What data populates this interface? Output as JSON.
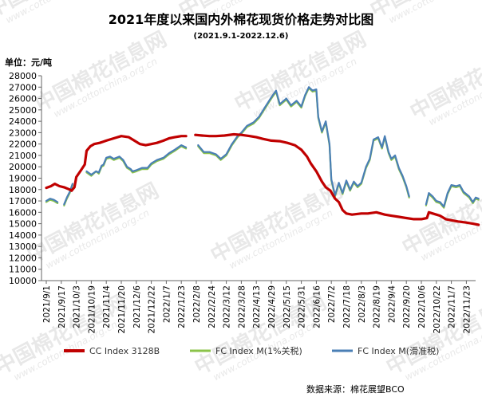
{
  "chart_data": {
    "type": "line",
    "title": "2021年度以来国内外棉花现货价格走势对比图",
    "subtitle": "(2021.9.1-2022.12.6)",
    "ylabel": "单位：元/吨",
    "ylim": [
      10000,
      28000
    ],
    "ytick_step": 1000,
    "grid": false,
    "legend_position": "bottom",
    "source": "数据来源：棉花展望BCO",
    "watermark": {
      "cn": "中国棉花信息网",
      "url": "www.cottonchina.org.cn"
    },
    "x_dates": [
      "2021/9/1",
      "2021/9/17",
      "2021/10/3",
      "2021/10/19",
      "2021/11/4",
      "2021/11/20",
      "2021/12/6",
      "2021/12/22",
      "2022/1/7",
      "2022/1/23",
      "2022/2/8",
      "2022/2/24",
      "2022/3/12",
      "2022/3/28",
      "2022/4/13",
      "2022/4/29",
      "2022/5/15",
      "2022/5/31",
      "2022/6/16",
      "2022/7/2",
      "2022/7/18",
      "2022/8/3",
      "2022/8/19",
      "2022/9/4",
      "2022/9/20",
      "2022/10/6",
      "2022/10/22",
      "2022/11/7",
      "2022/11/23"
    ],
    "x_range": [
      "2021/9/1",
      "2022/12/6"
    ],
    "series": [
      {
        "name": "CC Index 3128B",
        "color": "#c00000",
        "points": [
          [
            "2021/9/1",
            18150
          ],
          [
            "2021/9/6",
            18300
          ],
          [
            "2021/9/10",
            18500
          ],
          [
            "2021/9/15",
            18300
          ],
          [
            "2021/9/20",
            18200
          ],
          [
            "2021/9/26",
            18000
          ],
          [
            "2021/9/28",
            17900
          ],
          [
            "2021/10/1",
            18200
          ],
          [
            "2021/10/3",
            19100
          ],
          [
            "2021/10/8",
            19700
          ],
          [
            "2021/10/12",
            20200
          ],
          [
            "2021/10/14",
            21400
          ],
          [
            "2021/10/18",
            21800
          ],
          [
            "2021/10/22",
            22000
          ],
          [
            "2021/10/28",
            22100
          ],
          [
            "2021/11/4",
            22300
          ],
          [
            "2021/11/12",
            22500
          ],
          [
            "2021/11/20",
            22700
          ],
          [
            "2021/11/28",
            22600
          ],
          [
            "2021/12/4",
            22300
          ],
          [
            "2021/12/10",
            22000
          ],
          [
            "2021/12/16",
            21900
          ],
          [
            "2021/12/22",
            22000
          ],
          [
            "2021/12/28",
            22100
          ],
          [
            "2022/1/4",
            22300
          ],
          [
            "2022/1/10",
            22500
          ],
          [
            "2022/1/16",
            22600
          ],
          [
            "2022/1/23",
            22700
          ],
          [
            "2022/1/28",
            22700
          ],
          null,
          [
            "2022/2/7",
            22800
          ],
          [
            "2022/2/14",
            22750
          ],
          [
            "2022/2/22",
            22700
          ],
          [
            "2022/3/1",
            22700
          ],
          [
            "2022/3/10",
            22750
          ],
          [
            "2022/3/20",
            22850
          ],
          [
            "2022/3/28",
            22800
          ],
          [
            "2022/4/6",
            22700
          ],
          [
            "2022/4/13",
            22600
          ],
          [
            "2022/4/20",
            22450
          ],
          [
            "2022/4/29",
            22300
          ],
          [
            "2022/5/8",
            22250
          ],
          [
            "2022/5/16",
            22100
          ],
          [
            "2022/5/24",
            21900
          ],
          [
            "2022/5/31",
            21500
          ],
          [
            "2022/6/6",
            20900
          ],
          [
            "2022/6/10",
            20300
          ],
          [
            "2022/6/16",
            19600
          ],
          [
            "2022/6/22",
            18700
          ],
          [
            "2022/6/26",
            18200
          ],
          [
            "2022/7/1",
            17900
          ],
          [
            "2022/7/6",
            17200
          ],
          [
            "2022/7/10",
            16900
          ],
          [
            "2022/7/14",
            16200
          ],
          [
            "2022/7/18",
            15900
          ],
          [
            "2022/7/24",
            15800
          ],
          [
            "2022/8/3",
            15900
          ],
          [
            "2022/8/10",
            15900
          ],
          [
            "2022/8/19",
            16000
          ],
          [
            "2022/8/28",
            15800
          ],
          [
            "2022/9/4",
            15700
          ],
          [
            "2022/9/12",
            15600
          ],
          [
            "2022/9/20",
            15500
          ],
          [
            "2022/9/28",
            15400
          ],
          [
            "2022/10/6",
            15400
          ],
          [
            "2022/10/12",
            15500
          ],
          [
            "2022/10/14",
            16000
          ],
          [
            "2022/10/22",
            15800
          ],
          [
            "2022/10/26",
            15700
          ],
          [
            "2022/11/1",
            15400
          ],
          [
            "2022/11/7",
            15300
          ],
          [
            "2022/11/14",
            15200
          ],
          [
            "2022/11/23",
            15100
          ],
          [
            "2022/11/30",
            15000
          ],
          [
            "2022/12/6",
            14900
          ]
        ]
      },
      {
        "name": "FC Index M(1%关税)",
        "color": "#8bc34a",
        "points": [
          [
            "2021/9/1",
            16900
          ],
          [
            "2021/9/5",
            17100
          ],
          [
            "2021/9/9",
            17000
          ],
          [
            "2021/9/13",
            16800
          ],
          null,
          [
            "2021/9/20",
            16600
          ],
          [
            "2021/9/23",
            17200
          ],
          [
            "2021/9/26",
            17700
          ],
          [
            "2021/9/29",
            18400
          ],
          null,
          [
            "2021/10/14",
            19500
          ],
          [
            "2021/10/19",
            19200
          ],
          [
            "2021/10/24",
            19600
          ],
          [
            "2021/10/27",
            19400
          ],
          [
            "2021/10/30",
            20000
          ],
          [
            "2021/11/1",
            20100
          ],
          [
            "2021/11/4",
            20700
          ],
          [
            "2021/11/8",
            20800
          ],
          [
            "2021/11/12",
            20600
          ],
          [
            "2021/11/18",
            20800
          ],
          [
            "2021/11/22",
            20500
          ],
          [
            "2021/11/26",
            19900
          ],
          [
            "2021/11/30",
            19700
          ],
          [
            "2021/12/2",
            19500
          ],
          [
            "2021/12/6",
            19600
          ],
          [
            "2021/12/12",
            19800
          ],
          [
            "2021/12/18",
            19800
          ],
          [
            "2021/12/22",
            20200
          ],
          [
            "2021/12/28",
            20500
          ],
          [
            "2022/1/4",
            20700
          ],
          [
            "2022/1/10",
            21100
          ],
          [
            "2022/1/16",
            21400
          ],
          [
            "2022/1/23",
            21800
          ],
          [
            "2022/1/28",
            21600
          ],
          null,
          [
            "2022/2/10",
            21800
          ],
          [
            "2022/2/16",
            21200
          ],
          [
            "2022/2/22",
            21200
          ],
          [
            "2022/3/1",
            21000
          ],
          [
            "2022/3/6",
            20600
          ],
          [
            "2022/3/12",
            21000
          ],
          [
            "2022/3/18",
            21900
          ],
          [
            "2022/3/24",
            22600
          ],
          [
            "2022/3/28",
            22900
          ],
          [
            "2022/4/3",
            23500
          ],
          [
            "2022/4/10",
            23800
          ],
          [
            "2022/4/16",
            24300
          ],
          [
            "2022/4/22",
            25100
          ],
          [
            "2022/4/29",
            26000
          ],
          [
            "2022/5/4",
            26600
          ],
          [
            "2022/5/8",
            25400
          ],
          [
            "2022/5/15",
            25900
          ],
          [
            "2022/5/20",
            25300
          ],
          [
            "2022/5/26",
            25700
          ],
          [
            "2022/5/31",
            25200
          ],
          [
            "2022/6/4",
            26200
          ],
          [
            "2022/6/8",
            26900
          ],
          [
            "2022/6/12",
            26600
          ],
          [
            "2022/6/16",
            26700
          ],
          [
            "2022/6/18",
            24300
          ],
          [
            "2022/6/22",
            23000
          ],
          [
            "2022/6/26",
            23900
          ],
          [
            "2022/6/30",
            21900
          ],
          [
            "2022/7/2",
            18800
          ],
          [
            "2022/7/6",
            17400
          ],
          [
            "2022/7/10",
            18500
          ],
          [
            "2022/7/14",
            17600
          ],
          [
            "2022/7/18",
            18700
          ],
          [
            "2022/7/22",
            17900
          ],
          [
            "2022/7/26",
            18600
          ],
          [
            "2022/7/30",
            18200
          ],
          [
            "2022/8/3",
            18500
          ],
          [
            "2022/8/8",
            19900
          ],
          [
            "2022/8/12",
            20600
          ],
          [
            "2022/8/16",
            22300
          ],
          [
            "2022/8/21",
            22500
          ],
          [
            "2022/8/25",
            21600
          ],
          [
            "2022/8/28",
            22600
          ],
          [
            "2022/9/1",
            21200
          ],
          [
            "2022/9/4",
            20600
          ],
          [
            "2022/9/8",
            20900
          ],
          [
            "2022/9/12",
            19800
          ],
          [
            "2022/9/16",
            19100
          ],
          [
            "2022/9/20",
            18200
          ],
          [
            "2022/9/23",
            17300
          ],
          null,
          [
            "2022/10/11",
            16600
          ],
          [
            "2022/10/14",
            17600
          ],
          [
            "2022/10/18",
            17300
          ],
          [
            "2022/10/22",
            16900
          ],
          [
            "2022/10/26",
            16800
          ],
          [
            "2022/10/30",
            16400
          ],
          [
            "2022/11/3",
            17600
          ],
          [
            "2022/11/7",
            18300
          ],
          [
            "2022/11/12",
            18200
          ],
          [
            "2022/11/16",
            18300
          ],
          [
            "2022/11/20",
            17700
          ],
          [
            "2022/11/23",
            17500
          ],
          [
            "2022/11/26",
            17300
          ],
          [
            "2022/11/30",
            16800
          ],
          [
            "2022/12/3",
            17200
          ],
          [
            "2022/12/6",
            17100
          ]
        ]
      },
      {
        "name": "FC Index M(滑准税)",
        "color": "#4a7fb5",
        "points": [
          [
            "2021/9/1",
            17000
          ],
          [
            "2021/9/5",
            17200
          ],
          [
            "2021/9/9",
            17100
          ],
          [
            "2021/9/13",
            16900
          ],
          null,
          [
            "2021/9/20",
            16700
          ],
          [
            "2021/9/23",
            17300
          ],
          [
            "2021/9/26",
            17800
          ],
          [
            "2021/9/29",
            18500
          ],
          null,
          [
            "2021/10/14",
            19600
          ],
          [
            "2021/10/19",
            19300
          ],
          [
            "2021/10/24",
            19600
          ],
          [
            "2021/10/27",
            19500
          ],
          [
            "2021/10/30",
            20100
          ],
          [
            "2021/11/1",
            20200
          ],
          [
            "2021/11/4",
            20800
          ],
          [
            "2021/11/8",
            20900
          ],
          [
            "2021/11/12",
            20700
          ],
          [
            "2021/11/18",
            20900
          ],
          [
            "2021/11/22",
            20600
          ],
          [
            "2021/11/26",
            20000
          ],
          [
            "2021/11/30",
            19800
          ],
          [
            "2021/12/2",
            19600
          ],
          [
            "2021/12/6",
            19700
          ],
          [
            "2021/12/12",
            19900
          ],
          [
            "2021/12/18",
            19900
          ],
          [
            "2021/12/22",
            20300
          ],
          [
            "2021/12/28",
            20600
          ],
          [
            "2022/1/4",
            20800
          ],
          [
            "2022/1/10",
            21200
          ],
          [
            "2022/1/16",
            21500
          ],
          [
            "2022/1/23",
            21900
          ],
          [
            "2022/1/28",
            21700
          ],
          null,
          [
            "2022/2/10",
            21900
          ],
          [
            "2022/2/16",
            21300
          ],
          [
            "2022/2/22",
            21300
          ],
          [
            "2022/3/1",
            21100
          ],
          [
            "2022/3/6",
            20700
          ],
          [
            "2022/3/12",
            21100
          ],
          [
            "2022/3/18",
            22000
          ],
          [
            "2022/3/24",
            22700
          ],
          [
            "2022/3/28",
            23000
          ],
          [
            "2022/4/3",
            23600
          ],
          [
            "2022/4/10",
            23900
          ],
          [
            "2022/4/16",
            24400
          ],
          [
            "2022/4/22",
            25200
          ],
          [
            "2022/4/29",
            26100
          ],
          [
            "2022/5/4",
            26700
          ],
          [
            "2022/5/8",
            25500
          ],
          [
            "2022/5/15",
            26000
          ],
          [
            "2022/5/20",
            25400
          ],
          [
            "2022/5/26",
            25800
          ],
          [
            "2022/5/31",
            25300
          ],
          [
            "2022/6/4",
            26300
          ],
          [
            "2022/6/8",
            27000
          ],
          [
            "2022/6/12",
            26700
          ],
          [
            "2022/6/16",
            26800
          ],
          [
            "2022/6/18",
            24400
          ],
          [
            "2022/6/22",
            23100
          ],
          [
            "2022/6/26",
            24000
          ],
          [
            "2022/6/30",
            22000
          ],
          [
            "2022/7/2",
            18900
          ],
          [
            "2022/7/6",
            17500
          ],
          [
            "2022/7/10",
            18600
          ],
          [
            "2022/7/14",
            17700
          ],
          [
            "2022/7/18",
            18800
          ],
          [
            "2022/7/22",
            18000
          ],
          [
            "2022/7/26",
            18700
          ],
          [
            "2022/7/30",
            18300
          ],
          [
            "2022/8/3",
            18600
          ],
          [
            "2022/8/8",
            20000
          ],
          [
            "2022/8/12",
            20700
          ],
          [
            "2022/8/16",
            22400
          ],
          [
            "2022/8/21",
            22600
          ],
          [
            "2022/8/25",
            21700
          ],
          [
            "2022/8/28",
            22700
          ],
          [
            "2022/9/1",
            21300
          ],
          [
            "2022/9/4",
            20700
          ],
          [
            "2022/9/8",
            21000
          ],
          [
            "2022/9/12",
            19900
          ],
          [
            "2022/9/16",
            19200
          ],
          [
            "2022/9/20",
            18300
          ],
          [
            "2022/9/23",
            17400
          ],
          null,
          [
            "2022/10/11",
            16700
          ],
          [
            "2022/10/14",
            17700
          ],
          [
            "2022/10/18",
            17400
          ],
          [
            "2022/10/22",
            17000
          ],
          [
            "2022/10/26",
            16900
          ],
          [
            "2022/10/30",
            16500
          ],
          [
            "2022/11/3",
            17700
          ],
          [
            "2022/11/7",
            18400
          ],
          [
            "2022/11/12",
            18300
          ],
          [
            "2022/11/16",
            18400
          ],
          [
            "2022/11/20",
            17800
          ],
          [
            "2022/11/23",
            17600
          ],
          [
            "2022/11/26",
            17400
          ],
          [
            "2022/11/30",
            16900
          ],
          [
            "2022/12/3",
            17300
          ],
          [
            "2022/12/6",
            17200
          ]
        ]
      }
    ]
  }
}
